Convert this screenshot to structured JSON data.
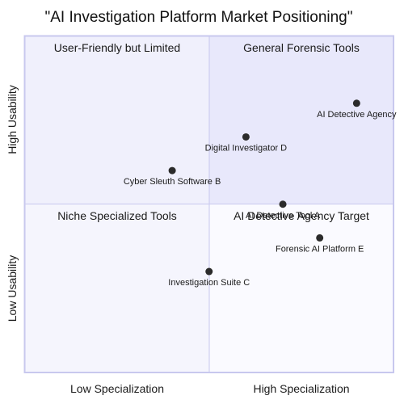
{
  "chart_data": {
    "type": "scatter",
    "title": "\"AI Investigation Platform Market Positioning\"",
    "xlim": [
      0,
      1
    ],
    "ylim": [
      0,
      1
    ],
    "x_axis_labels": {
      "low": "Low Specialization",
      "high": "High Specialization"
    },
    "y_axis_labels": {
      "low": "Low Usability",
      "high": "High Usability"
    },
    "quadrants": {
      "top_left": "User-Friendly but Limited",
      "top_right": "General Forensic Tools",
      "bottom_left": "Niche Specialized Tools",
      "bottom_right": "AI Detective Agency Target"
    },
    "points": [
      {
        "label": "AI Detective Agency",
        "x": 0.9,
        "y": 0.8
      },
      {
        "label": "Digital Investigator D",
        "x": 0.6,
        "y": 0.7
      },
      {
        "label": "Cyber Sleuth Software B",
        "x": 0.4,
        "y": 0.6
      },
      {
        "label": "AI Detective Tool A",
        "x": 0.7,
        "y": 0.5
      },
      {
        "label": "Forensic AI Platform E",
        "x": 0.8,
        "y": 0.4
      },
      {
        "label": "Investigation Suite C",
        "x": 0.5,
        "y": 0.3
      }
    ],
    "colors": {
      "top_right_fill": "#e8e8fb",
      "top_left_fill": "#f0f0fc",
      "bottom_left_fill": "#f5f5fd",
      "bottom_right_fill": "#fafaff",
      "border": "#c8c8ee",
      "point": "#2b2b2b"
    }
  }
}
